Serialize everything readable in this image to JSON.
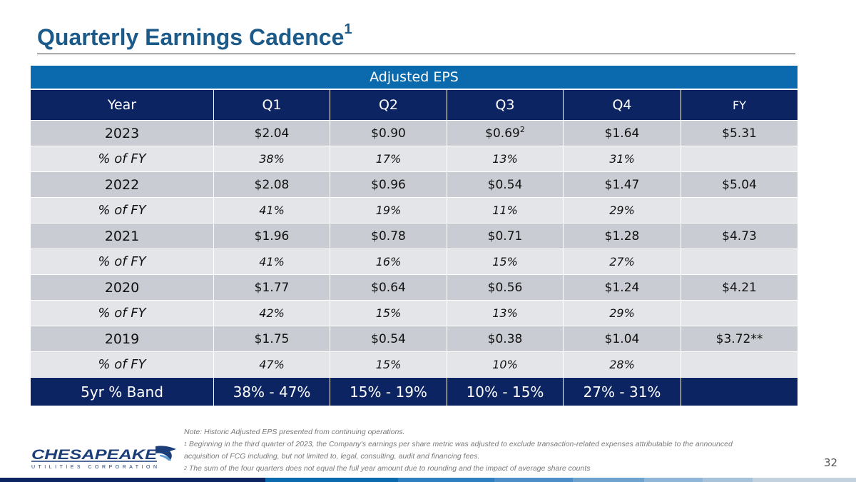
{
  "title": {
    "text": "Quarterly Earnings Cadence",
    "sup": "1"
  },
  "table": {
    "banner": "Adjusted EPS",
    "columns": [
      "Year",
      "Q1",
      "Q2",
      "Q3",
      "Q4",
      "FY"
    ],
    "rows": [
      {
        "year": "2023",
        "q1": "$2.04",
        "q2": "$0.90",
        "q3": "$0.69",
        "q3_sup": "2",
        "q4": "$1.64",
        "fy": "$5.31"
      },
      {
        "year": "% of FY",
        "q1": "38%",
        "q2": "17%",
        "q3": "13%",
        "q4": "31%",
        "fy": ""
      },
      {
        "year": "2022",
        "q1": "$2.08",
        "q2": "$0.96",
        "q3": "$0.54",
        "q4": "$1.47",
        "fy": "$5.04"
      },
      {
        "year": "% of FY",
        "q1": "41%",
        "q2": "19%",
        "q3": "11%",
        "q4": "29%",
        "fy": ""
      },
      {
        "year": "2021",
        "q1": "$1.96",
        "q2": "$0.78",
        "q3": "$0.71",
        "q4": "$1.28",
        "fy": "$4.73"
      },
      {
        "year": "% of FY",
        "q1": "41%",
        "q2": "16%",
        "q3": "15%",
        "q4": "27%",
        "fy": ""
      },
      {
        "year": "2020",
        "q1": "$1.77",
        "q2": "$0.64",
        "q3": "$0.56",
        "q4": "$1.24",
        "fy": "$4.21"
      },
      {
        "year": "% of FY",
        "q1": "42%",
        "q2": "15%",
        "q3": "13%",
        "q4": "29%",
        "fy": ""
      },
      {
        "year": "2019",
        "q1": "$1.75",
        "q2": "$0.54",
        "q3": "$0.38",
        "q4": "$1.04",
        "fy": "$3.72**"
      },
      {
        "year": "% of FY",
        "q1": "47%",
        "q2": "15%",
        "q3": "10%",
        "q4": "28%",
        "fy": ""
      }
    ],
    "band": {
      "label": "5yr % Band",
      "q1": "38% - 47%",
      "q2": "15% - 19%",
      "q3": "10% - 15%",
      "q4": "27% - 31%",
      "fy": ""
    }
  },
  "notes": {
    "note": "Note: Historic Adjusted EPS presented from continuing operations.",
    "fn1_mark": "1",
    "fn1": "Beginning in the third quarter of 2023, the Company's earnings per share metric was adjusted to exclude transaction-related expenses attributable to the announced acquisition of FCG including, but not limited to, legal, consulting, audit and financing fees.",
    "fn2_mark": "2",
    "fn2": "The sum of the four quarters does not equal the full year amount due to rounding and the impact of average share counts"
  },
  "logo": {
    "name": "CHESAPEAKE",
    "tagline": "UTILITIES CORPORATION"
  },
  "page_number": "32",
  "colors": {
    "title": "#1c5a8a",
    "banner": "#0a6aad",
    "header": "#0c2461",
    "year_row": "#c9ccd2",
    "pct_row": "#e4e5e9"
  }
}
